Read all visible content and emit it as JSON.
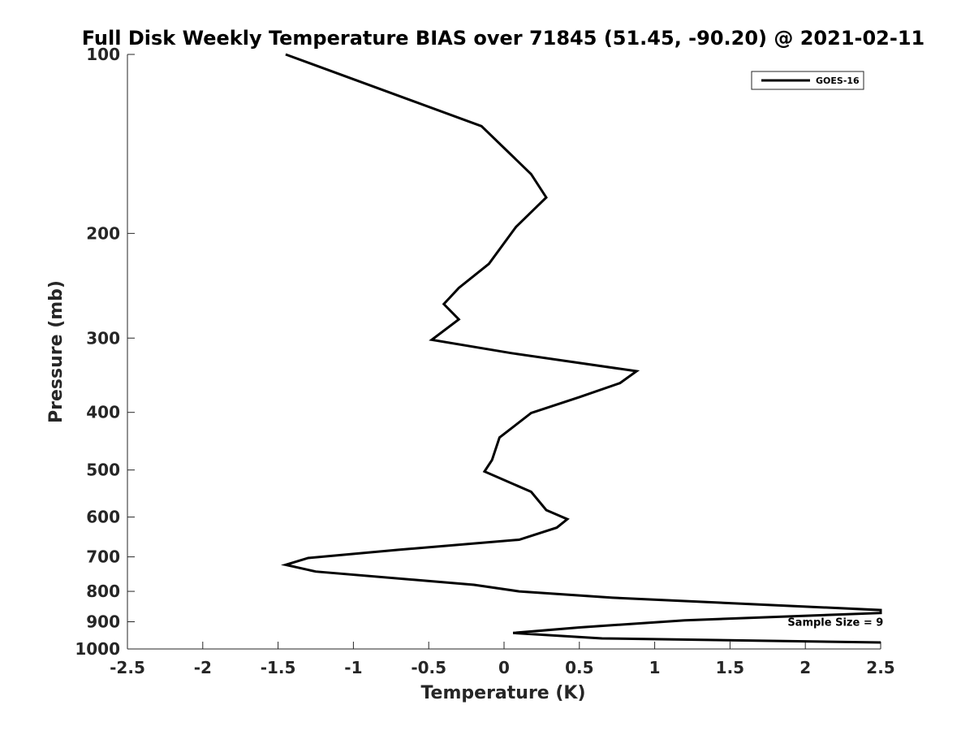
{
  "chart_data": {
    "type": "line",
    "title": "Full Disk Weekly Temperature BIAS over 71845 (51.45, -90.20) @ 2021-02-11",
    "xlabel": "Temperature (K)",
    "ylabel": "Pressure (mb)",
    "xlim": [
      -2.5,
      2.5
    ],
    "ylim": [
      100,
      1000
    ],
    "yscale": "log",
    "y_reversed": true,
    "grid": false,
    "legend_position": "top-right",
    "x_ticks": [
      -2.5,
      -2,
      -1.5,
      -1,
      -0.5,
      0,
      0.5,
      1,
      1.5,
      2,
      2.5
    ],
    "x_tick_labels": [
      "-2.5",
      "-2",
      "-1.5",
      "-1",
      "-0.5",
      "0",
      "0.5",
      "1",
      "1.5",
      "2",
      "2.5"
    ],
    "y_ticks": [
      100,
      200,
      300,
      400,
      500,
      600,
      700,
      800,
      900,
      1000
    ],
    "y_tick_labels": [
      "100",
      "200",
      "300",
      "400",
      "500",
      "600",
      "700",
      "800",
      "900",
      "1000"
    ],
    "series": [
      {
        "name": "GOES-16",
        "color": "#000000",
        "points": [
          {
            "x": -1.45,
            "y": 100
          },
          {
            "x": -0.15,
            "y": 132
          },
          {
            "x": 0.18,
            "y": 159
          },
          {
            "x": 0.28,
            "y": 174
          },
          {
            "x": 0.08,
            "y": 195
          },
          {
            "x": -0.1,
            "y": 225
          },
          {
            "x": -0.3,
            "y": 247
          },
          {
            "x": -0.4,
            "y": 263
          },
          {
            "x": -0.3,
            "y": 279
          },
          {
            "x": -0.48,
            "y": 302
          },
          {
            "x": 0.05,
            "y": 318
          },
          {
            "x": 0.88,
            "y": 341
          },
          {
            "x": 0.77,
            "y": 357
          },
          {
            "x": 0.5,
            "y": 377
          },
          {
            "x": 0.18,
            "y": 401
          },
          {
            "x": -0.03,
            "y": 441
          },
          {
            "x": -0.08,
            "y": 481
          },
          {
            "x": -0.13,
            "y": 503
          },
          {
            "x": 0.18,
            "y": 544
          },
          {
            "x": 0.28,
            "y": 584
          },
          {
            "x": 0.42,
            "y": 605
          },
          {
            "x": 0.35,
            "y": 625
          },
          {
            "x": 0.1,
            "y": 655
          },
          {
            "x": -0.7,
            "y": 681
          },
          {
            "x": -1.3,
            "y": 703
          },
          {
            "x": -1.45,
            "y": 722
          },
          {
            "x": -1.25,
            "y": 741
          },
          {
            "x": -0.2,
            "y": 780
          },
          {
            "x": 0.1,
            "y": 800
          },
          {
            "x": 0.72,
            "y": 820
          },
          {
            "x": 2.5,
            "y": 860
          },
          {
            "x": 2.5,
            "y": 870
          },
          {
            "x": 1.2,
            "y": 895
          },
          {
            "x": 0.5,
            "y": 920
          },
          {
            "x": 0.06,
            "y": 940
          },
          {
            "x": 0.65,
            "y": 960
          },
          {
            "x": 2.5,
            "y": 975
          }
        ]
      }
    ],
    "annotations": [
      {
        "text": "Sample Size = 9",
        "x": 2.2,
        "y": 900
      }
    ]
  }
}
